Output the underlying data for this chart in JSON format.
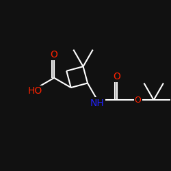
{
  "background_color": "#111111",
  "bond_color": "white",
  "atom_colors": {
    "O": "#ff2200",
    "N": "#2222ff",
    "C": "white"
  },
  "figsize": [
    2.5,
    2.5
  ],
  "dpi": 100,
  "bond_lw": 1.5,
  "font_size": 10
}
